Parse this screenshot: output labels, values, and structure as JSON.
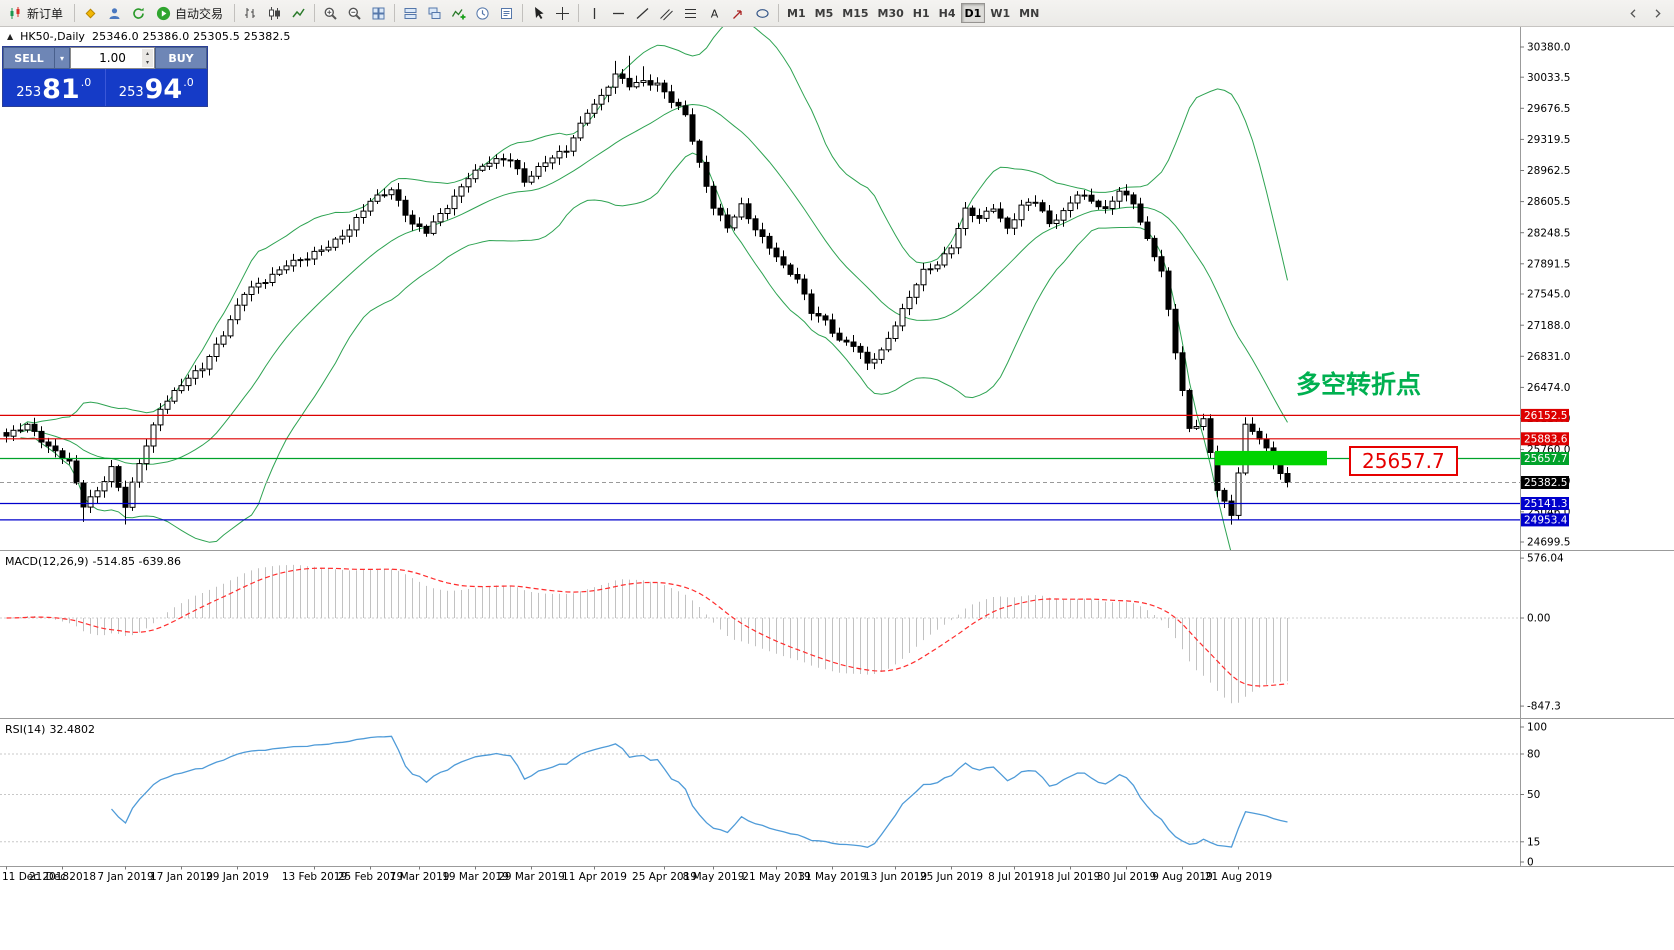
{
  "toolbar": {
    "groups": [
      {
        "name": "order",
        "items": [
          {
            "name": "new-order-button",
            "icon": "new-order-icon",
            "label": "新订单"
          }
        ]
      },
      {
        "name": "apps",
        "items": [
          {
            "name": "metaeditor-button",
            "icon": "diamond-icon"
          },
          {
            "name": "market-watch-button",
            "icon": "person-icon"
          },
          {
            "name": "refresh-button",
            "icon": "refresh-icon"
          },
          {
            "name": "autotrading-button",
            "icon": "play-icon",
            "label": "自动交易"
          }
        ]
      },
      {
        "name": "chart-types",
        "items": [
          {
            "name": "bar-chart-button",
            "icon": "bar-chart-icon"
          },
          {
            "name": "candlestick-chart-button",
            "icon": "candlestick-icon"
          },
          {
            "name": "line-chart-button",
            "icon": "line-chart-icon"
          }
        ]
      },
      {
        "name": "zoom",
        "items": [
          {
            "name": "zoom-in-button",
            "icon": "zoom-in-icon"
          },
          {
            "name": "zoom-out-button",
            "icon": "zoom-out-icon"
          },
          {
            "name": "tile-windows-button",
            "icon": "grid-icon"
          }
        ]
      },
      {
        "name": "arrange",
        "items": [
          {
            "name": "auto-arrange-button",
            "icon": "arrange-icon"
          },
          {
            "name": "cascade-windows-button",
            "icon": "cascade-icon"
          },
          {
            "name": "indicators-button",
            "icon": "indicator-icon"
          },
          {
            "name": "periods-button",
            "icon": "clock-icon"
          },
          {
            "name": "templates-button",
            "icon": "template-icon"
          }
        ]
      },
      {
        "name": "pointer",
        "items": [
          {
            "name": "cursor-button",
            "icon": "cursor-icon"
          },
          {
            "name": "crosshair-button",
            "icon": "crosshair-icon"
          }
        ]
      },
      {
        "name": "objects",
        "items": [
          {
            "name": "vertical-line-button",
            "icon": "vline-icon"
          },
          {
            "name": "horizontal-line-button",
            "icon": "hline-icon"
          },
          {
            "name": "trendline-button",
            "icon": "trendline-icon"
          },
          {
            "name": "channel-button",
            "icon": "channel-icon"
          },
          {
            "name": "fibonacci-button",
            "icon": "fibo-icon"
          },
          {
            "name": "text-button",
            "icon": "text-icon"
          },
          {
            "name": "arrows-button",
            "icon": "arrow-icon"
          },
          {
            "name": "shapes-button",
            "icon": "shapes-icon"
          }
        ]
      },
      {
        "name": "timeframes",
        "items": [
          {
            "name": "tf-m1-button",
            "label": "M1"
          },
          {
            "name": "tf-m5-button",
            "label": "M5"
          },
          {
            "name": "tf-m15-button",
            "label": "M15"
          },
          {
            "name": "tf-m30-button",
            "label": "M30"
          },
          {
            "name": "tf-h1-button",
            "label": "H1"
          },
          {
            "name": "tf-h4-button",
            "label": "H4"
          },
          {
            "name": "tf-d1-button",
            "label": "D1",
            "active": true
          },
          {
            "name": "tf-w1-button",
            "label": "W1"
          },
          {
            "name": "tf-mn-button",
            "label": "MN"
          }
        ]
      }
    ],
    "overflow": [
      {
        "name": "toolbar-scroll-left-button",
        "icon": "chevron-left-icon"
      },
      {
        "name": "toolbar-scroll-right-button",
        "icon": "chevron-right-icon"
      }
    ]
  },
  "chart_header": {
    "symbol": "HK50-,Daily",
    "ohlc": "25346.0 25386.0 25305.5 25382.5"
  },
  "order_panel": {
    "sell_label": "SELL",
    "buy_label": "BUY",
    "volume": "1.00",
    "sell_price": "25381.0",
    "buy_price": "25394.0",
    "panel_color": "#153bc7"
  },
  "annotations": {
    "turning_point": {
      "text": "多空转折点",
      "color": "#00b050"
    },
    "callout": {
      "text": "25657.7",
      "color": "#e60000"
    }
  },
  "chart_data": {
    "type": "candlestick",
    "title": "HK50-,Daily",
    "candles_count": 184,
    "price_anchors": [
      [
        0,
        25900
      ],
      [
        3,
        26050
      ],
      [
        6,
        25800
      ],
      [
        9,
        25600
      ],
      [
        11,
        25120
      ],
      [
        13,
        25300
      ],
      [
        15,
        25550
      ],
      [
        17,
        25100
      ],
      [
        19,
        25600
      ],
      [
        22,
        26250
      ],
      [
        25,
        26500
      ],
      [
        28,
        26700
      ],
      [
        31,
        27100
      ],
      [
        34,
        27550
      ],
      [
        37,
        27700
      ],
      [
        40,
        27900
      ],
      [
        43,
        27950
      ],
      [
        46,
        28100
      ],
      [
        49,
        28300
      ],
      [
        52,
        28600
      ],
      [
        55,
        28750
      ],
      [
        58,
        28350
      ],
      [
        60,
        28250
      ],
      [
        63,
        28550
      ],
      [
        66,
        28900
      ],
      [
        69,
        29050
      ],
      [
        72,
        29100
      ],
      [
        74,
        28850
      ],
      [
        77,
        29050
      ],
      [
        80,
        29200
      ],
      [
        83,
        29650
      ],
      [
        85,
        29800
      ],
      [
        87,
        30050
      ],
      [
        89,
        29950
      ],
      [
        91,
        30000
      ],
      [
        93,
        29950
      ],
      [
        95,
        29750
      ],
      [
        97,
        29600
      ],
      [
        99,
        29050
      ],
      [
        101,
        28550
      ],
      [
        103,
        28300
      ],
      [
        105,
        28550
      ],
      [
        107,
        28300
      ],
      [
        109,
        28100
      ],
      [
        111,
        27850
      ],
      [
        113,
        27700
      ],
      [
        115,
        27350
      ],
      [
        117,
        27250
      ],
      [
        119,
        27000
      ],
      [
        121,
        26950
      ],
      [
        123,
        26750
      ],
      [
        125,
        26900
      ],
      [
        127,
        27200
      ],
      [
        129,
        27500
      ],
      [
        131,
        27800
      ],
      [
        133,
        27900
      ],
      [
        135,
        28100
      ],
      [
        137,
        28500
      ],
      [
        139,
        28400
      ],
      [
        141,
        28550
      ],
      [
        143,
        28300
      ],
      [
        145,
        28550
      ],
      [
        147,
        28600
      ],
      [
        149,
        28350
      ],
      [
        151,
        28500
      ],
      [
        153,
        28700
      ],
      [
        155,
        28600
      ],
      [
        157,
        28500
      ],
      [
        159,
        28750
      ],
      [
        161,
        28600
      ],
      [
        163,
        28150
      ],
      [
        165,
        27800
      ],
      [
        167,
        26900
      ],
      [
        169,
        26000
      ],
      [
        171,
        26100
      ],
      [
        173,
        25300
      ],
      [
        175,
        25000
      ],
      [
        177,
        26050
      ],
      [
        179,
        25900
      ],
      [
        181,
        25600
      ],
      [
        183,
        25382.5
      ]
    ],
    "wick_overrides": {
      "11": {
        "low": 24930
      },
      "17": {
        "low": 24900
      },
      "87": {
        "high": 30220
      },
      "89": {
        "high": 30280
      },
      "91": {
        "high": 30160
      },
      "175": {
        "low": 24899
      },
      "177": {
        "high": 26130
      },
      "183": {
        "high": 25560
      }
    },
    "price_ticks": [
      "30380.0",
      "30033.5",
      "29676.5",
      "29319.5",
      "28962.5",
      "28605.5",
      "28248.5",
      "27891.5",
      "27545.0",
      "27188.0",
      "26831.0",
      "26474.0",
      "26117.0",
      "25760.0",
      "25403.0",
      "25046.0",
      "24699.5"
    ],
    "hlines": [
      {
        "price": 26152.5,
        "label": "26152.5",
        "color": "#dd0000"
      },
      {
        "price": 25883.6,
        "label": "25883.6",
        "color": "#dd0000"
      },
      {
        "price": 25657.7,
        "label": "25657.7",
        "color": "#00a22a"
      },
      {
        "price": 25141.3,
        "label": "25141.3",
        "color": "#0000cc"
      },
      {
        "price": 24953.4,
        "label": "24953.4",
        "color": "#0000cc"
      }
    ],
    "current_price": {
      "price": 25382.5,
      "label": "25382.5",
      "bg": "#000000"
    },
    "bollinger": {
      "period": 20,
      "deviation": 2,
      "color": "#2ea352"
    },
    "highlight_rect": {
      "from_index": 173,
      "to_index": 189,
      "price_top": 25745,
      "price_bottom": 25580,
      "color": "#00d400"
    },
    "macd": {
      "label": "MACD(12,26,9)",
      "values": "-514.85 -639.86",
      "axis": [
        "576.04",
        "0.00",
        "-847.3"
      ],
      "hist_color": "#c2c2c2",
      "signal_color": "#ff2d2d"
    },
    "rsi": {
      "label": "RSI(14)",
      "value": "32.4802",
      "levels": [
        80,
        50,
        15
      ],
      "axis": [
        "100",
        "80",
        "50",
        "15",
        "0"
      ],
      "color": "#4f9bd8"
    },
    "dates": [
      {
        "i": 0,
        "t": "11 Dec 2018"
      },
      {
        "i": 8,
        "t": "21 Dec 2018"
      },
      {
        "i": 17,
        "t": "7 Jan 2019"
      },
      {
        "i": 25,
        "t": "17 Jan 2019"
      },
      {
        "i": 33,
        "t": "29 Jan 2019"
      },
      {
        "i": 44,
        "t": "13 Feb 2019"
      },
      {
        "i": 52,
        "t": "25 Feb 2019"
      },
      {
        "i": 59,
        "t": "7 Mar 2019"
      },
      {
        "i": 67,
        "t": "19 Mar 2019"
      },
      {
        "i": 75,
        "t": "29 Mar 2019"
      },
      {
        "i": 84,
        "t": "11 Apr 2019"
      },
      {
        "i": 94,
        "t": "25 Apr 2019"
      },
      {
        "i": 101,
        "t": "8 May 2019"
      },
      {
        "i": 110,
        "t": "21 May 2019"
      },
      {
        "i": 118,
        "t": "31 May 2019"
      },
      {
        "i": 127,
        "t": "13 Jun 2019"
      },
      {
        "i": 135,
        "t": "25 Jun 2019"
      },
      {
        "i": 144,
        "t": "8 Jul 2019"
      },
      {
        "i": 152,
        "t": "18 Jul 2019"
      },
      {
        "i": 160,
        "t": "30 Jul 2019"
      },
      {
        "i": 168,
        "t": "9 Aug 2019"
      },
      {
        "i": 176,
        "t": "21 Aug 2019"
      }
    ]
  }
}
